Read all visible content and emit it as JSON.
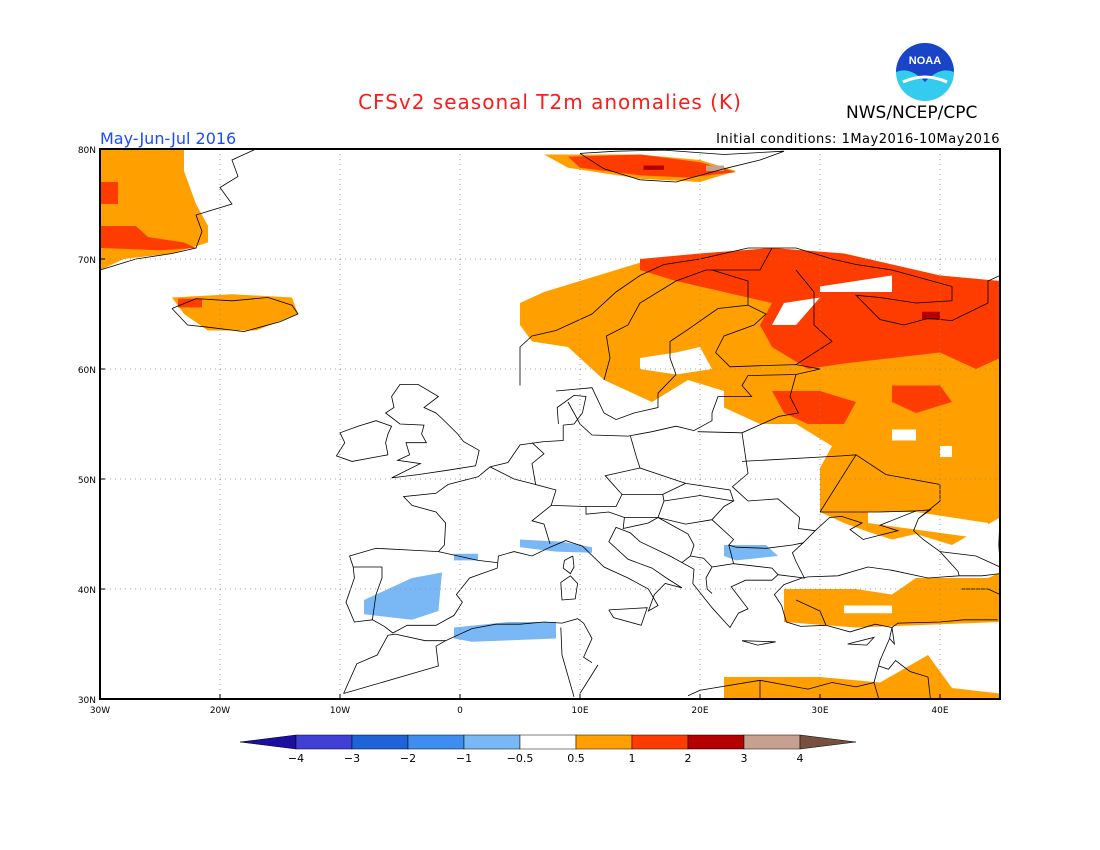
{
  "header": {
    "title": "CFSv2 seasonal T2m anomalies (K)",
    "season": "May-Jun-Jul 2016",
    "initial_conditions": "Initial conditions: 1May2016-10May2016",
    "agency": "NWS/NCEP/CPC",
    "logo_text": "NOAA"
  },
  "map": {
    "lat_labels": [
      "30N",
      "40N",
      "50N",
      "60N",
      "70N",
      "80N"
    ],
    "lon_labels": [
      "30W",
      "20W",
      "10W",
      "0",
      "10E",
      "20E",
      "30E",
      "40E"
    ],
    "lat_range": [
      30,
      80
    ],
    "lon_range": [
      -30,
      45
    ],
    "grid": "dotted"
  },
  "colorbar": {
    "labels": [
      "-4",
      "-3",
      "-2",
      "-1",
      "-0.5",
      "0.5",
      "1",
      "2",
      "3",
      "4"
    ],
    "colors": [
      "#1c0fa0",
      "#4040d6",
      "#1e64d8",
      "#3d8ef0",
      "#7ab8f5",
      "#ffffff",
      "#ffa000",
      "#ff3c00",
      "#b40000",
      "#c8a090",
      "#785040"
    ]
  },
  "colors": {
    "light_orange": "#ffa000",
    "red": "#ff3c00",
    "dark_red": "#b40000",
    "tan": "#c8a090",
    "light_blue": "#7ab8f5",
    "title": "#ff1a1a",
    "season": "#1a4dff",
    "noaa_blue": "#1a44c8",
    "noaa_cyan": "#33ccee"
  }
}
